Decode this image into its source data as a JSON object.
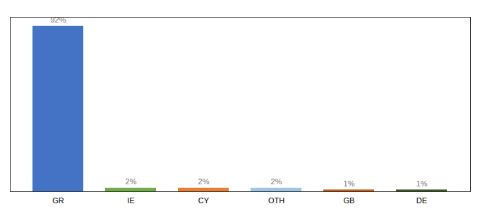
{
  "chart_data": {
    "type": "bar",
    "categories": [
      "GR",
      "IE",
      "CY",
      "OTH",
      "GB",
      "DE"
    ],
    "values": [
      92,
      2,
      2,
      2,
      1,
      1
    ],
    "value_labels": [
      "92%",
      "2%",
      "2%",
      "2%",
      "1%",
      "1%"
    ],
    "colors": [
      "#4472C4",
      "#70AD47",
      "#ED7D31",
      "#9DC3E6",
      "#C55A11",
      "#375623"
    ],
    "ylim": [
      0,
      97
    ],
    "grid": false,
    "tick_labels": "x",
    "data_labels": true
  }
}
